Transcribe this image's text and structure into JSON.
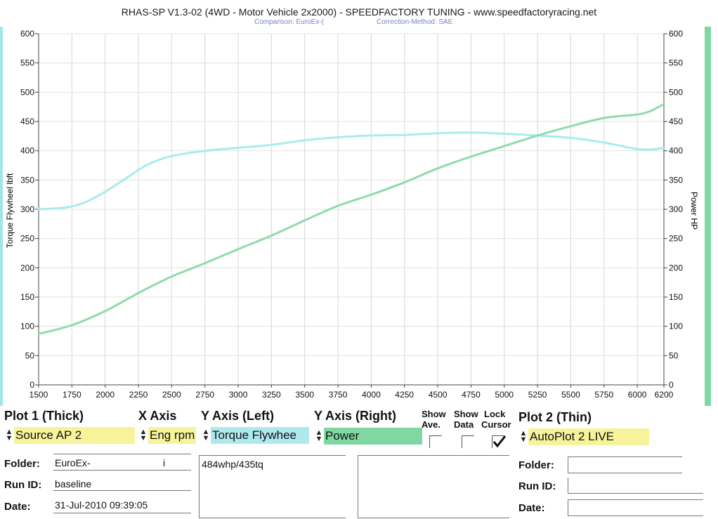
{
  "header": {
    "title": "RHAS-SP V1.3-02  (4WD - Motor Vehicle 2x2000) - SPEEDFACTORY TUNING - www.speedfactoryracing.net",
    "comparison": "Comparison: EuroEx-(",
    "correction": "Correction-Method: SAE"
  },
  "chart_data": {
    "type": "line",
    "xlabel": "",
    "ylabel_left": "Torque Flywheel lbft",
    "ylabel_right": "Power HP",
    "xlim": [
      1500,
      6200
    ],
    "ylim_left": [
      0,
      600
    ],
    "ylim_right": [
      0,
      600
    ],
    "x_ticks": [
      1500,
      1750,
      2000,
      2250,
      2500,
      2750,
      3000,
      3250,
      3500,
      3750,
      4000,
      4250,
      4500,
      4750,
      5000,
      5250,
      5500,
      5750,
      6000,
      6200
    ],
    "y_ticks_left": [
      0,
      50,
      100,
      150,
      200,
      250,
      300,
      350,
      400,
      450,
      500,
      550,
      600
    ],
    "y_ticks_right": [
      0,
      50,
      100,
      150,
      200,
      250,
      300,
      350,
      400,
      450,
      500,
      550,
      600
    ],
    "grid": true,
    "series": [
      {
        "axis": "left",
        "color": "#a8ecec",
        "x": [
          1500,
          1700,
          1850,
          2000,
          2150,
          2300,
          2450,
          2600,
          2800,
          3000,
          3250,
          3500,
          3750,
          4000,
          4250,
          4500,
          4750,
          5000,
          5250,
          5500,
          5750,
          5900,
          6000,
          6100,
          6200
        ],
        "y": [
          300,
          303,
          312,
          330,
          352,
          374,
          388,
          395,
          401,
          405,
          410,
          418,
          423,
          426,
          427,
          430,
          431,
          429,
          426,
          422,
          414,
          407,
          403,
          402,
          405
        ]
      },
      {
        "axis": "right",
        "color": "#8edcaa",
        "x": [
          1500,
          1750,
          2000,
          2250,
          2500,
          2750,
          3000,
          3250,
          3500,
          3750,
          4000,
          4250,
          4500,
          4750,
          5000,
          5250,
          5500,
          5750,
          6000,
          6100,
          6200
        ],
        "y": [
          87,
          102,
          126,
          157,
          185,
          208,
          232,
          255,
          281,
          306,
          325,
          346,
          370,
          390,
          408,
          426,
          442,
          456,
          462,
          468,
          480
        ]
      }
    ]
  },
  "controls": {
    "plot1_title": "Plot 1 (Thick)",
    "plot1_value": "Source AP 2",
    "xaxis_title": "X Axis",
    "xaxis_value": "Eng rpm",
    "yleft_title": "Y Axis (Left)",
    "yleft_value": "Torque Flywhee",
    "yright_title": "Y Axis (Right)",
    "yright_value": "Power",
    "show_ave_l1": "Show",
    "show_ave_l2": "Ave.",
    "show_data_l1": "Show",
    "show_data_l2": "Data",
    "lock_cursor_l1": "Lock",
    "lock_cursor_l2": "Cursor",
    "plot2_title": "Plot 2 (Thin)",
    "plot2_value": "AutoPlot 2 LIVE",
    "colors": {
      "yellow": "#f6f39a",
      "cyan": "#aee9ee",
      "green": "#7fd8a2"
    }
  },
  "run_info": {
    "folder_label": "Folder:",
    "folder_value": "EuroEx-",
    "folder_value_tail": "i",
    "runid_label": "Run ID:",
    "runid_value": "baseline",
    "date_label": "Date:",
    "date_value": "31-Jul-2010  09:39:05",
    "notes": "484whp/435tq"
  },
  "run_info2": {
    "folder_label": "Folder:",
    "runid_label": "Run ID:",
    "date_label": "Date:"
  }
}
